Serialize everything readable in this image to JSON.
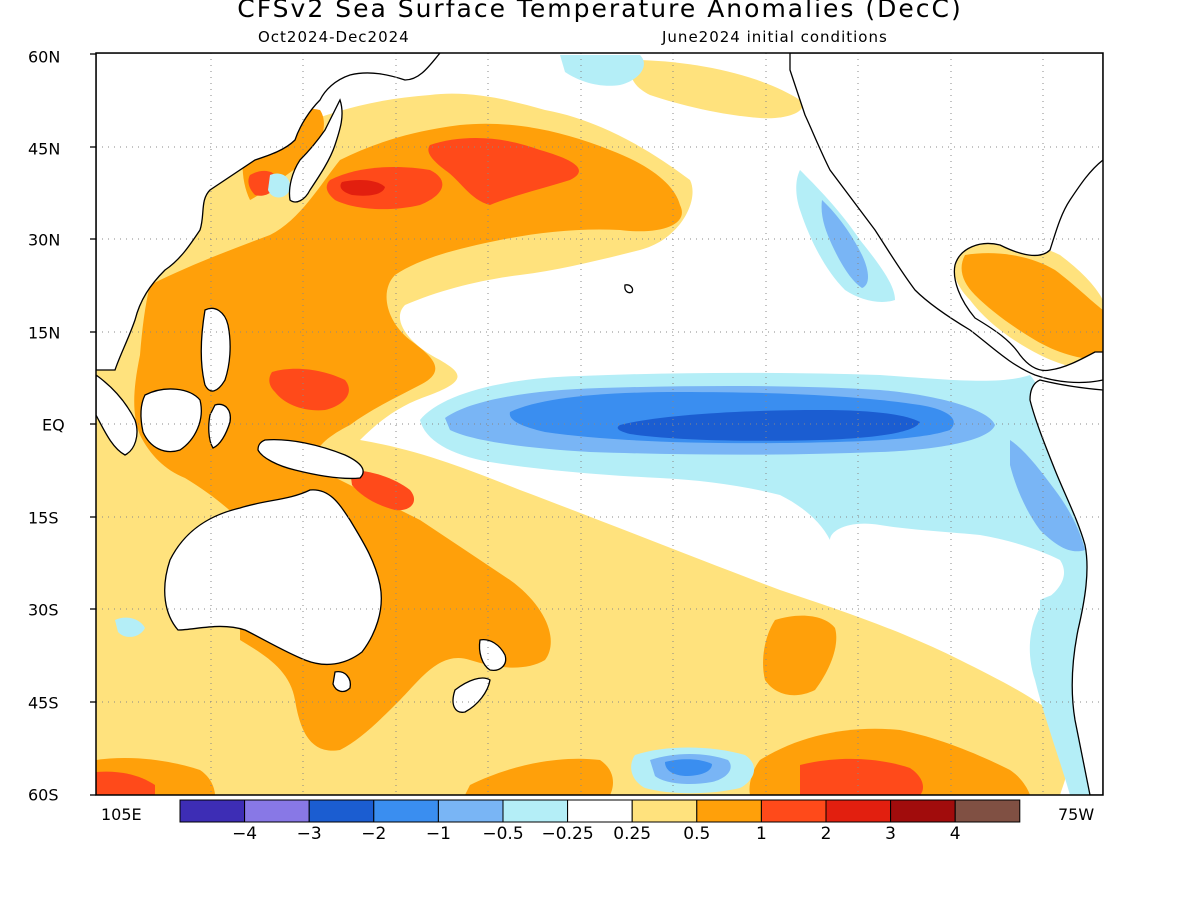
{
  "title": "CFSv2 Sea Surface Temperature Anomalies (DecC)",
  "subtitle_left": "Oct2024-Dec2024",
  "subtitle_right": "June2024 initial conditions",
  "lat_labels": [
    "60N",
    "45N",
    "30N",
    "15N",
    "EQ",
    "15S",
    "30S",
    "45S",
    "60S"
  ],
  "lon_labels": {
    "left": "105E",
    "right": "75W"
  },
  "colorbar": {
    "colors": [
      "#3d2db5",
      "#8878e6",
      "#1b5dd1",
      "#3a8ef0",
      "#79b5f5",
      "#b4eef7",
      "#ffffff",
      "#ffe27d",
      "#ffa00a",
      "#ff4a1a",
      "#e21f0f",
      "#a10c0c",
      "#805043"
    ],
    "labels": [
      "-4",
      "-3",
      "-2",
      "-1",
      "-0.5",
      "-0.25",
      "0.25",
      "0.5",
      "1",
      "2",
      "3",
      "4"
    ]
  }
}
